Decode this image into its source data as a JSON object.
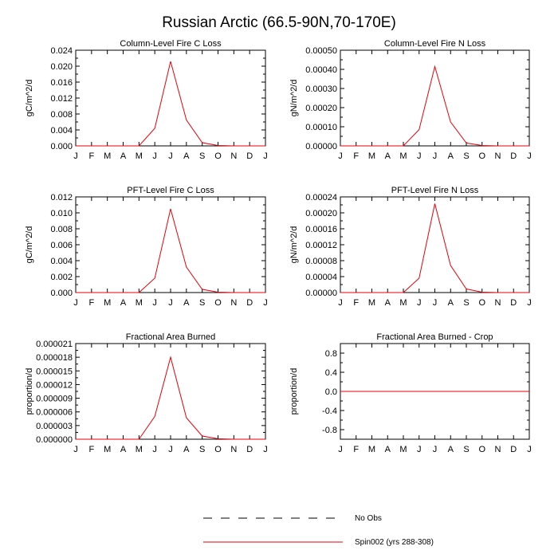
{
  "figure_title": "Russian Arctic (66.5-90N,70-170E)",
  "months": [
    "J",
    "F",
    "M",
    "A",
    "M",
    "J",
    "J",
    "A",
    "S",
    "O",
    "N",
    "D",
    "J"
  ],
  "colors": {
    "model": "#e8000b",
    "obs": "#000000",
    "axes": "#000000"
  },
  "legend": {
    "entries": [
      {
        "label": "No Obs",
        "style": "dashed",
        "color": "#000000"
      },
      {
        "label": "Spin002 (yrs 288-308)",
        "style": "solid",
        "color": "#e8000b"
      }
    ]
  },
  "chart_data": [
    {
      "type": "line",
      "title": "Column-Level Fire C Loss",
      "ylabel": "gC/m^2/d",
      "ylim": [
        0,
        0.024
      ],
      "yticks": [
        "0.000",
        "0.004",
        "0.008",
        "0.012",
        "0.016",
        "0.020",
        "0.024"
      ],
      "x": [
        "J",
        "F",
        "M",
        "A",
        "M",
        "J",
        "J",
        "A",
        "S",
        "O",
        "N",
        "D",
        "J"
      ],
      "series": [
        {
          "name": "Spin002 (yrs 288-308)",
          "values": [
            0,
            0,
            0,
            0,
            0,
            0.0044,
            0.0212,
            0.0065,
            0.0008,
            0.0001,
            0,
            0,
            0
          ]
        }
      ]
    },
    {
      "type": "line",
      "title": "Column-Level Fire N Loss",
      "ylabel": "gN/m^2/d",
      "ylim": [
        0,
        0.0005
      ],
      "yticks": [
        "0.00000",
        "0.00010",
        "0.00020",
        "0.00030",
        "0.00040",
        "0.00050"
      ],
      "x": [
        "J",
        "F",
        "M",
        "A",
        "M",
        "J",
        "J",
        "A",
        "S",
        "O",
        "N",
        "D",
        "J"
      ],
      "series": [
        {
          "name": "Spin002 (yrs 288-308)",
          "values": [
            0,
            0,
            0,
            0,
            0,
            8.5e-05,
            0.000415,
            0.000125,
            1.5e-05,
            2e-06,
            0,
            0,
            0
          ]
        }
      ]
    },
    {
      "type": "line",
      "title": "PFT-Level Fire C Loss",
      "ylabel": "gC/m^2/d",
      "ylim": [
        0,
        0.012
      ],
      "yticks": [
        "0.000",
        "0.002",
        "0.004",
        "0.006",
        "0.008",
        "0.010",
        "0.012"
      ],
      "x": [
        "J",
        "F",
        "M",
        "A",
        "M",
        "J",
        "J",
        "A",
        "S",
        "O",
        "N",
        "D",
        "J"
      ],
      "series": [
        {
          "name": "Spin002 (yrs 288-308)",
          "values": [
            0,
            0,
            0,
            0,
            0,
            0.0018,
            0.0105,
            0.0032,
            0.0004,
            5e-05,
            0,
            0,
            0
          ]
        }
      ]
    },
    {
      "type": "line",
      "title": "PFT-Level Fire N Loss",
      "ylabel": "gN/m^2/d",
      "ylim": [
        0,
        0.00024
      ],
      "yticks": [
        "0.00000",
        "0.00004",
        "0.00008",
        "0.00012",
        "0.00016",
        "0.00020",
        "0.00024"
      ],
      "x": [
        "J",
        "F",
        "M",
        "A",
        "M",
        "J",
        "J",
        "A",
        "S",
        "O",
        "N",
        "D",
        "J"
      ],
      "series": [
        {
          "name": "Spin002 (yrs 288-308)",
          "values": [
            0,
            0,
            0,
            0,
            0,
            3.6e-05,
            0.000223,
            6.8e-05,
            9e-06,
            1e-06,
            0,
            0,
            0
          ]
        }
      ]
    },
    {
      "type": "line",
      "title": "Fractional Area Burned",
      "ylabel": "proportion/d",
      "ylim": [
        0,
        2.1e-05
      ],
      "yticks": [
        "0.000000",
        "0.000003",
        "0.000006",
        "0.000009",
        "0.000012",
        "0.000015",
        "0.000018",
        "0.000021"
      ],
      "x": [
        "J",
        "F",
        "M",
        "A",
        "M",
        "J",
        "J",
        "A",
        "S",
        "O",
        "N",
        "D",
        "J"
      ],
      "series": [
        {
          "name": "Spin002 (yrs 288-308)",
          "values": [
            0,
            0,
            0,
            0,
            0,
            5e-06,
            1.8e-05,
            4.7e-06,
            7e-07,
            1e-07,
            0,
            0,
            0
          ]
        }
      ]
    },
    {
      "type": "line",
      "title": "Fractional Area Burned - Crop",
      "ylabel": "proportion/d",
      "ylim": [
        -1,
        1
      ],
      "yticks": [
        "-0.8",
        "-0.4",
        "0.0",
        "0.4",
        "0.8"
      ],
      "ytick_values": [
        -0.8,
        -0.4,
        0.0,
        0.4,
        0.8
      ],
      "x": [
        "J",
        "F",
        "M",
        "A",
        "M",
        "J",
        "J",
        "A",
        "S",
        "O",
        "N",
        "D",
        "J"
      ],
      "series": [
        {
          "name": "Spin002 (yrs 288-308)",
          "values": [
            0,
            0,
            0,
            0,
            0,
            0,
            0,
            0,
            0,
            0,
            0,
            0,
            0
          ]
        }
      ]
    }
  ]
}
